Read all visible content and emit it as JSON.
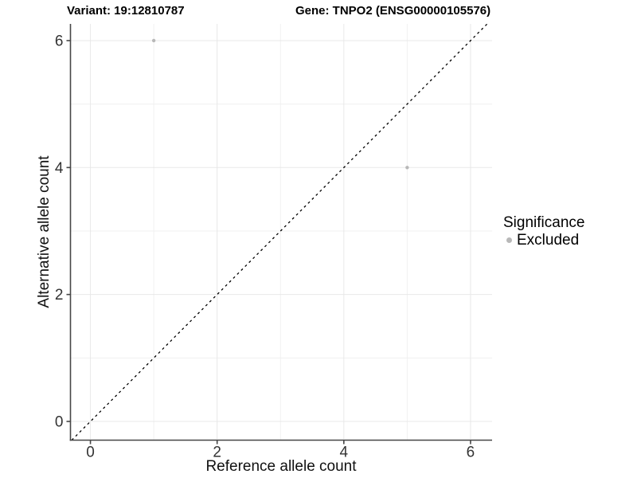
{
  "chart_data": {
    "type": "scatter",
    "title_left": "Variant: 19:12810787",
    "title_right": "Gene: TNPO2 (ENSG00000105576)",
    "xlabel": "Reference allele count",
    "ylabel": "Alternative allele count",
    "x_breaks": [
      0,
      2,
      4,
      6
    ],
    "x_tick_labels": [
      "0",
      "2",
      "4",
      "6"
    ],
    "y_breaks": [
      0,
      2,
      4,
      6
    ],
    "y_tick_labels": [
      "0",
      "2",
      "4",
      "6"
    ],
    "x_minor_breaks": [
      1,
      3,
      5
    ],
    "y_minor_breaks": [
      1,
      3,
      5
    ],
    "xlim": [
      -0.315,
      6.34
    ],
    "ylim": [
      -0.295,
      6.263
    ],
    "grid": true,
    "legend_position": "right",
    "series": [
      {
        "name": "Excluded",
        "color": "#b8b8b8",
        "points": [
          {
            "x": 1,
            "y": 6
          },
          {
            "x": 5,
            "y": 4
          }
        ]
      }
    ],
    "identity_line": {
      "slope": 1,
      "intercept": 0,
      "linetype": "dashed",
      "color": "#000000"
    },
    "legend": {
      "title": "Significance",
      "items": [
        {
          "label": "Excluded",
          "color": "#b8b8b8"
        }
      ]
    },
    "colors": {
      "grid_major": "#e8e8e8",
      "grid_minor": "#f0f0f0",
      "axis": "#464646",
      "tick_text": "#333333",
      "background": "#ffffff"
    }
  }
}
